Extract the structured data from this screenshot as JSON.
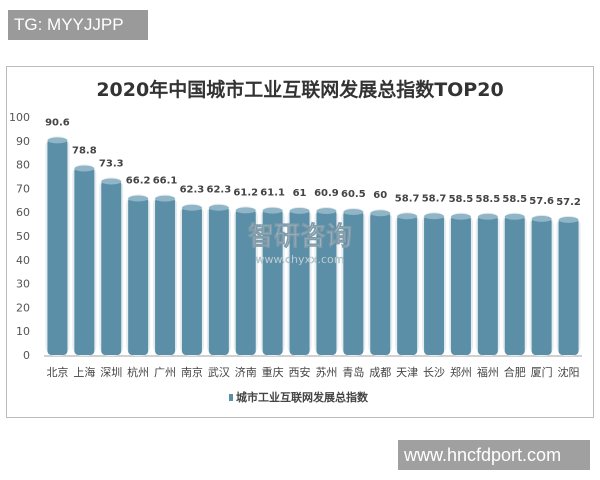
{
  "overlay_tag": "TG: MYYJJPP",
  "site_label": "www.hncfdport.com",
  "watermark": {
    "name": "智研咨询",
    "url": "www.chyxx.com"
  },
  "chart_data": {
    "type": "bar",
    "title": "2020年中国城市工业互联网发展总指数TOP20",
    "categories": [
      "北京",
      "上海",
      "深圳",
      "杭州",
      "广州",
      "南京",
      "武汉",
      "济南",
      "重庆",
      "西安",
      "苏州",
      "青岛",
      "成都",
      "天津",
      "长沙",
      "郑州",
      "福州",
      "合肥",
      "厦门",
      "沈阳"
    ],
    "series": [
      {
        "name": "城市工业互联网发展总指数",
        "values": [
          90.6,
          78.8,
          73.3,
          66.2,
          66.1,
          62.3,
          62.3,
          61.2,
          61.1,
          61,
          60.9,
          60.5,
          60,
          58.7,
          58.7,
          58.5,
          58.5,
          58.5,
          57.6,
          57.2
        ],
        "color": "#5b8fa8"
      }
    ],
    "ylim": [
      0,
      100
    ],
    "yticks": [
      0,
      10,
      20,
      30,
      40,
      50,
      60,
      70,
      80,
      90,
      100
    ],
    "grid": false,
    "legend": "bottom",
    "data_labels": true
  }
}
